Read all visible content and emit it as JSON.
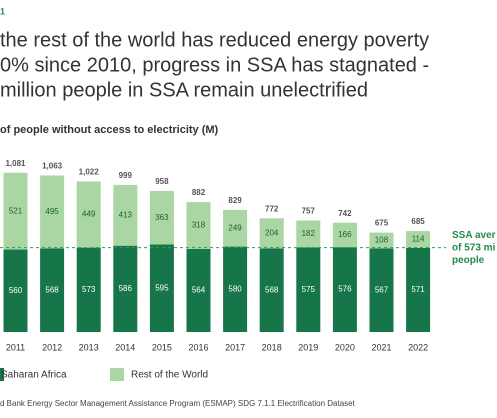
{
  "header": {
    "kicker": "1",
    "title_lines": [
      "the rest of the world has reduced energy poverty",
      "0% since 2010, progress in SSA has stagnated -",
      "million people in SSA remain unelectrified"
    ]
  },
  "chart_data": {
    "type": "stacked_bar",
    "subtitle": "of people without access to electricity (M)",
    "categories": [
      "2011",
      "2012",
      "2013",
      "2014",
      "2015",
      "2016",
      "2017",
      "2018",
      "2019",
      "2020",
      "2021",
      "2022"
    ],
    "series": [
      {
        "name": "Saharan Africa",
        "color": "#17754a",
        "values": [
          560,
          568,
          573,
          586,
          595,
          564,
          580,
          568,
          575,
          576,
          567,
          571
        ]
      },
      {
        "name": "Rest of the World",
        "color": "#a9d6a3",
        "values": [
          521,
          495,
          449,
          413,
          363,
          318,
          249,
          204,
          182,
          166,
          108,
          114
        ]
      }
    ],
    "total_labels": [
      "1,081",
      "1,063",
      "1,022",
      "999",
      "958",
      "882",
      "829",
      "772",
      "757",
      "742",
      "675",
      "685"
    ],
    "ylim": [
      0,
      1100
    ],
    "reference_line": 573,
    "annotation_lines": [
      "SSA aver",
      "of 573 mi",
      "people"
    ],
    "source": "d Bank Energy Sector Management Assistance Program (ESMAP) SDG 7.1.1 Electrification Dataset"
  }
}
